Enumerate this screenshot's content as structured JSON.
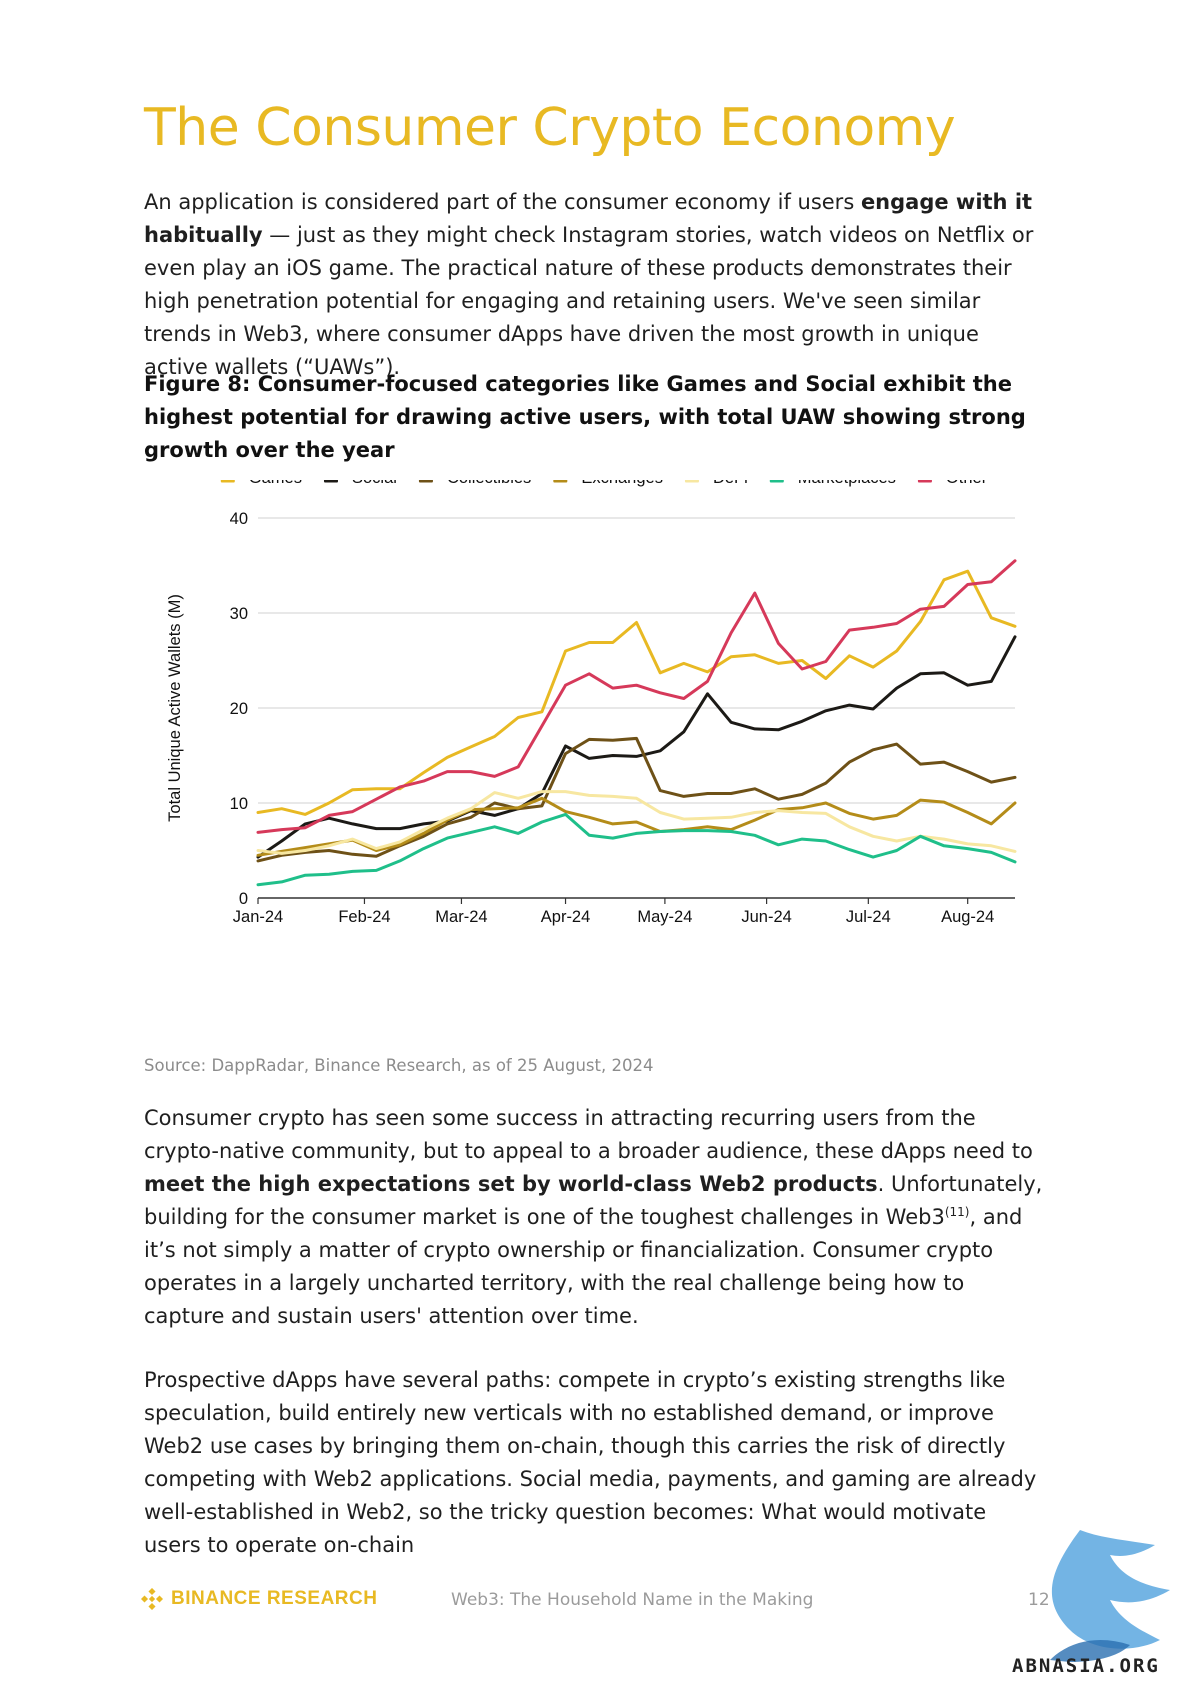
{
  "page": {
    "title": "The Consumer Crypto Economy",
    "intro": {
      "t1": "An application is considered part of the consumer economy if users ",
      "b1": "engage with it habitually",
      "t2": " — just as they might check Instagram stories, watch videos on Netflix or even play an iOS game. The practical nature of these products demonstrates their high penetration potential for engaging and retaining users. We've seen similar trends in Web3, where consumer dApps have driven the most growth in unique active wallets (“UAWs”)."
    },
    "figure_caption": "Figure 8: Consumer-focused categories like Games and Social exhibit the highest potential for drawing active users, with total UAW showing strong growth over the year",
    "source": "Source: DappRadar, Binance Research, as of 25 August, 2024",
    "para2": {
      "t1": "Consumer crypto has seen some success in attracting recurring users from the crypto-native community, but to appeal to a broader audience, these dApps need to ",
      "b1": "meet the high expectations set by world-class Web2 products",
      "t2": ". Unfortunately, building for the consumer market is one of the toughest challenges in Web3",
      "sup": "(11)",
      "t3": ", and it’s not simply a matter of crypto ownership or financialization. Consumer crypto operates in a largely uncharted territory, with the real challenge being how to capture and sustain users' attention over time."
    },
    "para3": "Prospective dApps have several paths: compete in crypto’s existing strengths like speculation, build entirely new verticals with no established demand, or improve Web2 use cases by bringing them on-chain, though this carries the risk of directly competing with Web2 applications. Social media, payments, and gaming are already well-established in Web2, so the tricky question becomes: What would motivate users to operate on-chain"
  },
  "footer": {
    "brand": "BINANCE RESEARCH",
    "center": "Web3: The Household Name in the Making",
    "page_number": "12",
    "watermark": "ABNASIA.ORG"
  },
  "chart_data": {
    "type": "line",
    "title": "",
    "xlabel": "",
    "ylabel": "Total Unique Active Wallets (M)",
    "ylim": [
      0,
      40
    ],
    "yticks": [
      0,
      10,
      20,
      30,
      40
    ],
    "x_tick_labels": [
      "Jan-24",
      "Feb-24",
      "Mar-24",
      "Apr-24",
      "May-24",
      "Jun-24",
      "Jul-24",
      "Aug-24"
    ],
    "x_tick_weeks": [
      0,
      4.5,
      8.6,
      13,
      17.2,
      21.5,
      25.8,
      30
    ],
    "x_weeks": [
      0,
      1,
      2,
      3,
      4,
      5,
      6,
      7,
      8,
      9,
      10,
      11,
      12,
      13,
      14,
      15,
      16,
      17,
      18,
      19,
      20,
      21,
      22,
      23,
      24,
      25,
      26,
      27,
      28,
      29,
      30,
      31,
      32
    ],
    "grid": true,
    "legend_position": "top",
    "series": [
      {
        "name": "Games",
        "color": "#e8b923",
        "values": [
          9.0,
          9.4,
          8.8,
          10.0,
          11.4,
          11.5,
          11.5,
          13.2,
          14.8,
          15.9,
          17.0,
          19.0,
          19.6,
          26.0,
          26.9,
          26.9,
          29.0,
          23.7,
          24.7,
          23.8,
          25.4,
          25.6,
          24.7,
          25.0,
          23.1,
          25.5,
          24.3,
          26.0,
          29.1,
          33.5,
          34.4,
          29.5,
          28.6
        ]
      },
      {
        "name": "Social",
        "color": "#1c1a16",
        "values": [
          4.3,
          6.0,
          7.8,
          8.4,
          7.8,
          7.3,
          7.3,
          7.8,
          8.1,
          9.2,
          8.7,
          9.4,
          11.0,
          16.0,
          14.7,
          15.0,
          14.9,
          15.5,
          17.5,
          21.5,
          18.5,
          17.8,
          17.7,
          18.6,
          19.7,
          20.3,
          19.9,
          22.1,
          23.6,
          23.7,
          22.4,
          22.8,
          27.5
        ]
      },
      {
        "name": "Collectibles",
        "color": "#6e5117",
        "values": [
          3.9,
          4.5,
          4.8,
          5.0,
          4.6,
          4.4,
          5.5,
          6.5,
          7.8,
          8.5,
          10.0,
          9.4,
          9.7,
          15.2,
          16.7,
          16.6,
          16.8,
          11.3,
          10.7,
          11.0,
          11.0,
          11.5,
          10.4,
          10.9,
          12.1,
          14.3,
          15.6,
          16.2,
          14.1,
          14.3,
          13.3,
          12.2,
          12.7
        ]
      },
      {
        "name": "Exchanges",
        "color": "#b48c19",
        "values": [
          4.5,
          4.9,
          5.3,
          5.7,
          6.1,
          5.0,
          5.6,
          6.8,
          8.2,
          9.3,
          9.4,
          9.5,
          10.5,
          9.1,
          8.5,
          7.8,
          8.0,
          7.0,
          7.2,
          7.5,
          7.2,
          8.2,
          9.3,
          9.5,
          10.0,
          8.9,
          8.3,
          8.7,
          10.3,
          10.1,
          9.0,
          7.8,
          10.0
        ]
      },
      {
        "name": "DeFi",
        "color": "#f7e7a1",
        "values": [
          5.0,
          4.7,
          5.0,
          5.5,
          6.2,
          5.2,
          5.9,
          7.2,
          8.4,
          9.4,
          11.1,
          10.5,
          11.2,
          11.2,
          10.8,
          10.7,
          10.5,
          9.0,
          8.3,
          8.4,
          8.5,
          9.0,
          9.2,
          9.0,
          8.9,
          7.5,
          6.5,
          6.0,
          6.5,
          6.2,
          5.7,
          5.5,
          4.9
        ]
      },
      {
        "name": "Marketplaces",
        "color": "#1fbf8a",
        "values": [
          1.4,
          1.7,
          2.4,
          2.5,
          2.8,
          2.9,
          3.9,
          5.2,
          6.3,
          6.9,
          7.5,
          6.8,
          8.0,
          8.8,
          6.6,
          6.3,
          6.8,
          7.0,
          7.1,
          7.1,
          7.0,
          6.6,
          5.6,
          6.2,
          6.0,
          5.1,
          4.3,
          5.0,
          6.5,
          5.5,
          5.2,
          4.8,
          3.8
        ]
      },
      {
        "name": "Other",
        "color": "#d6395a",
        "values": [
          6.9,
          7.2,
          7.4,
          8.7,
          9.1,
          10.4,
          11.7,
          12.3,
          13.3,
          13.3,
          12.8,
          13.8,
          18.1,
          22.4,
          23.6,
          22.1,
          22.4,
          21.6,
          21.0,
          22.8,
          27.9,
          32.1,
          26.8,
          24.1,
          24.9,
          28.2,
          28.5,
          28.9,
          30.4,
          30.7,
          33.0,
          33.3,
          35.5
        ]
      }
    ]
  }
}
